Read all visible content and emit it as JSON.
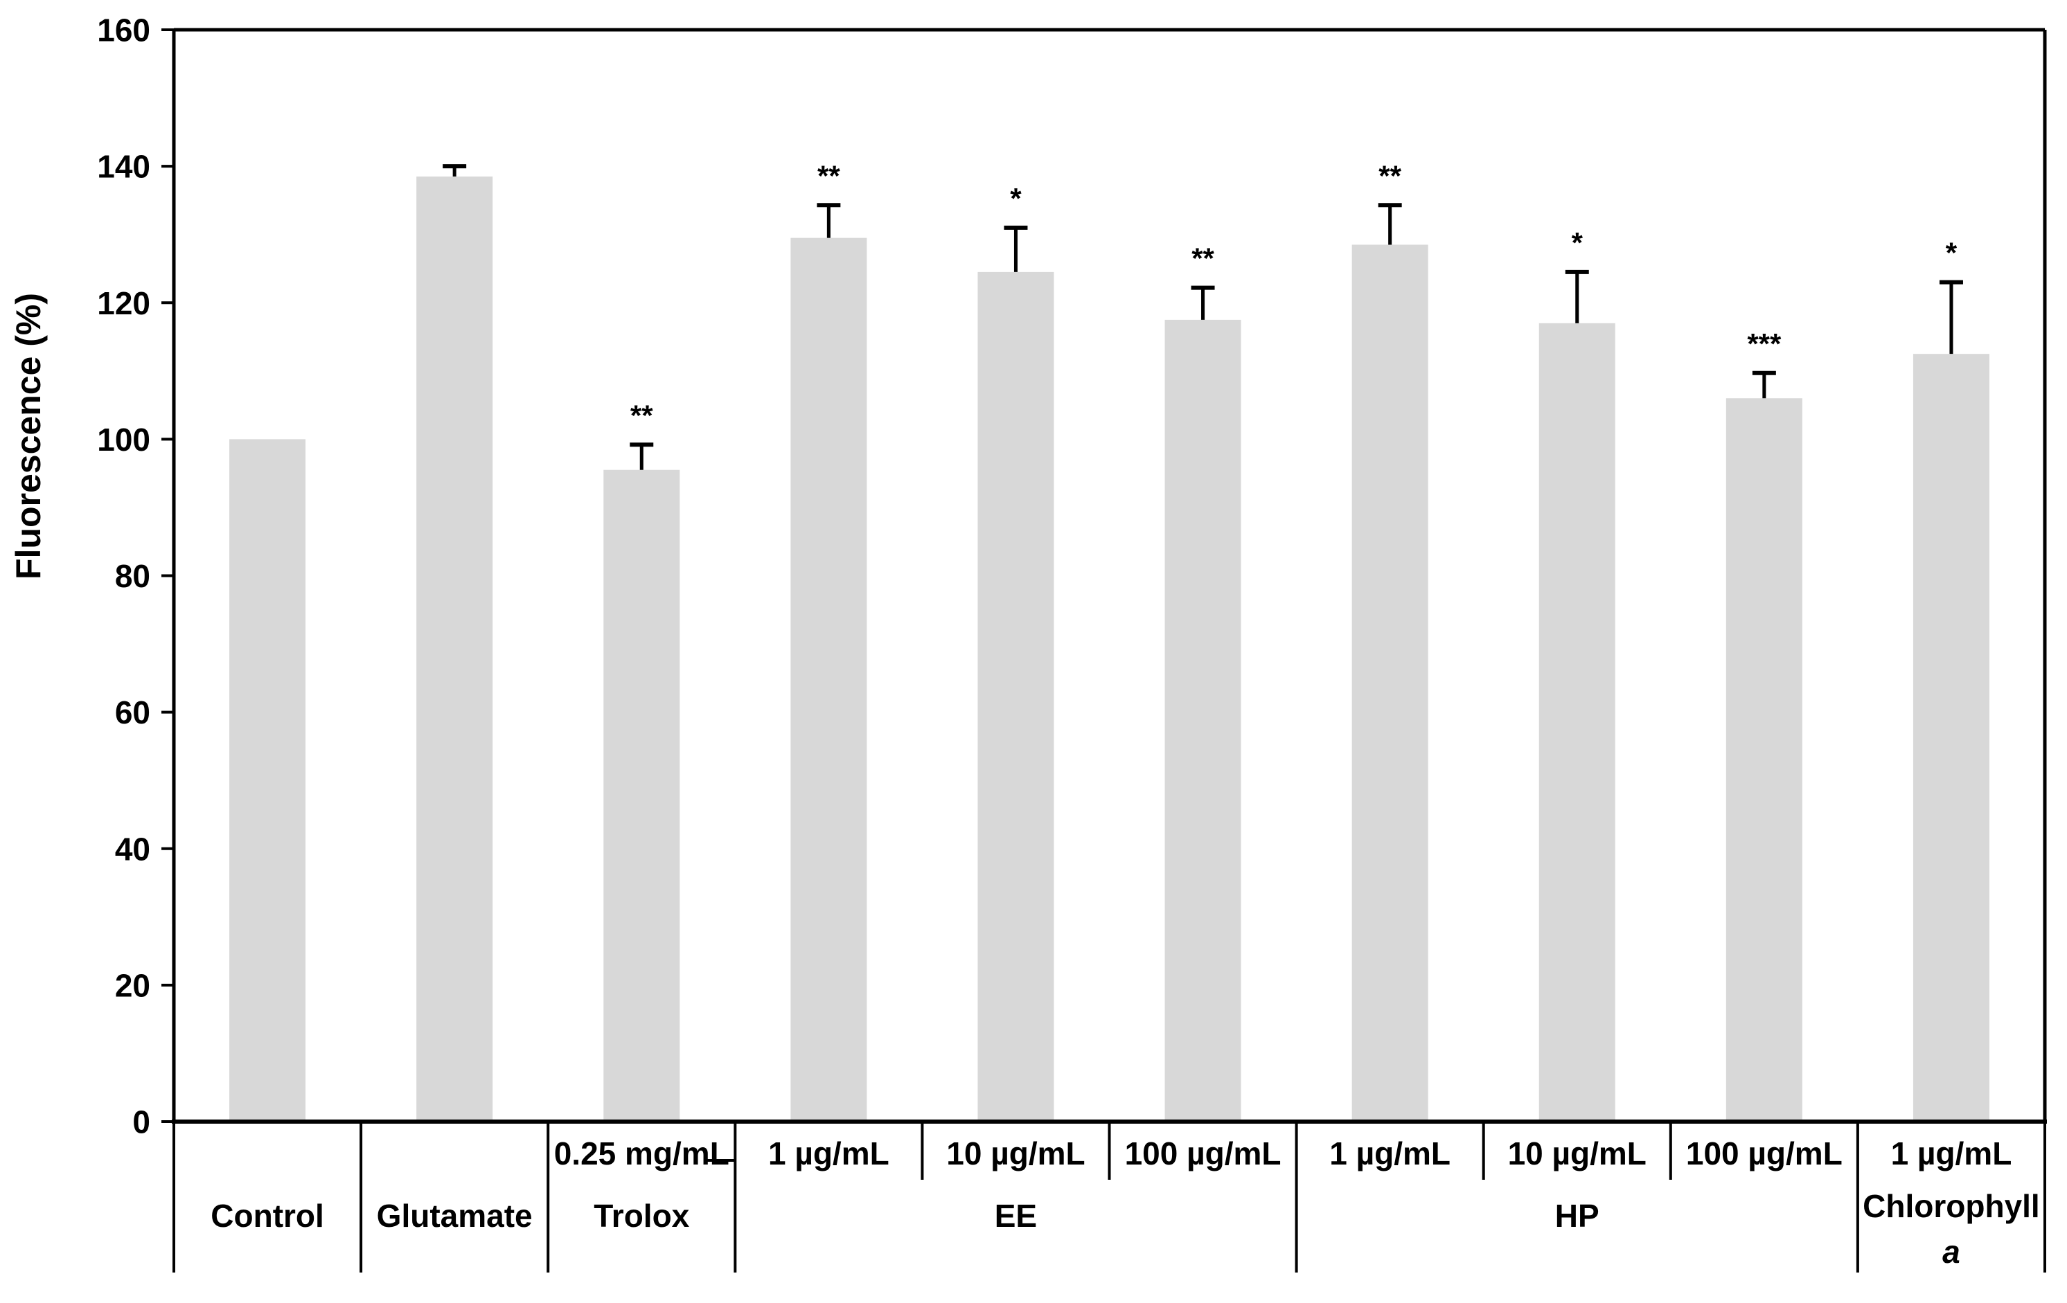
{
  "page": {
    "background": "#FFFFFF",
    "text_color": "#000000"
  },
  "chart_data": {
    "type": "bar",
    "title": "",
    "xlabel": "",
    "ylabel": "Fluorescence (%)",
    "ylim": [
      0,
      160
    ],
    "yticks": [
      0,
      20,
      40,
      60,
      80,
      100,
      120,
      140,
      160
    ],
    "grid": false,
    "legend": false,
    "bar_color": "#D8D8D8",
    "axis_color": "#000000",
    "categories": [
      {
        "id": "control",
        "conc_label": "",
        "value": 100,
        "error": null,
        "significance": ""
      },
      {
        "id": "glutamate",
        "conc_label": "",
        "value": 138.5,
        "error": 1.5,
        "significance": ""
      },
      {
        "id": "trolox",
        "conc_label": "0.25 mg/mL",
        "value": 95.5,
        "error": 3.7,
        "significance": "**"
      },
      {
        "id": "ee-1",
        "conc_label": "1 µg/mL",
        "value": 129.5,
        "error": 4.8,
        "significance": "**"
      },
      {
        "id": "ee-10",
        "conc_label": "10 µg/mL",
        "value": 124.5,
        "error": 6.5,
        "significance": "*"
      },
      {
        "id": "ee-100",
        "conc_label": "100 µg/mL",
        "value": 117.5,
        "error": 4.7,
        "significance": "**"
      },
      {
        "id": "hp-1",
        "conc_label": "1 µg/mL",
        "value": 128.5,
        "error": 5.8,
        "significance": "**"
      },
      {
        "id": "hp-10",
        "conc_label": "10 µg/mL",
        "value": 117,
        "error": 7.5,
        "significance": "*"
      },
      {
        "id": "hp-100",
        "conc_label": "100 µg/mL",
        "value": 106,
        "error": 3.7,
        "significance": "***"
      },
      {
        "id": "chlorophyll-a-1",
        "conc_label": "1 µg/mL",
        "value": 112.5,
        "error": 10.5,
        "significance": "*"
      }
    ],
    "groups": [
      {
        "id": "control",
        "label": "Control",
        "span": 1
      },
      {
        "id": "glutamate",
        "label": "Glutamate",
        "span": 1
      },
      {
        "id": "trolox",
        "label": "Trolox",
        "span": 1
      },
      {
        "id": "ee",
        "label": "EE",
        "span": 3
      },
      {
        "id": "hp",
        "label": "HP",
        "span": 3
      },
      {
        "id": "chlorophyll-a",
        "label": "Chlorophyll",
        "label_line2": "a",
        "label_line2_italic": true,
        "span": 1
      }
    ]
  }
}
